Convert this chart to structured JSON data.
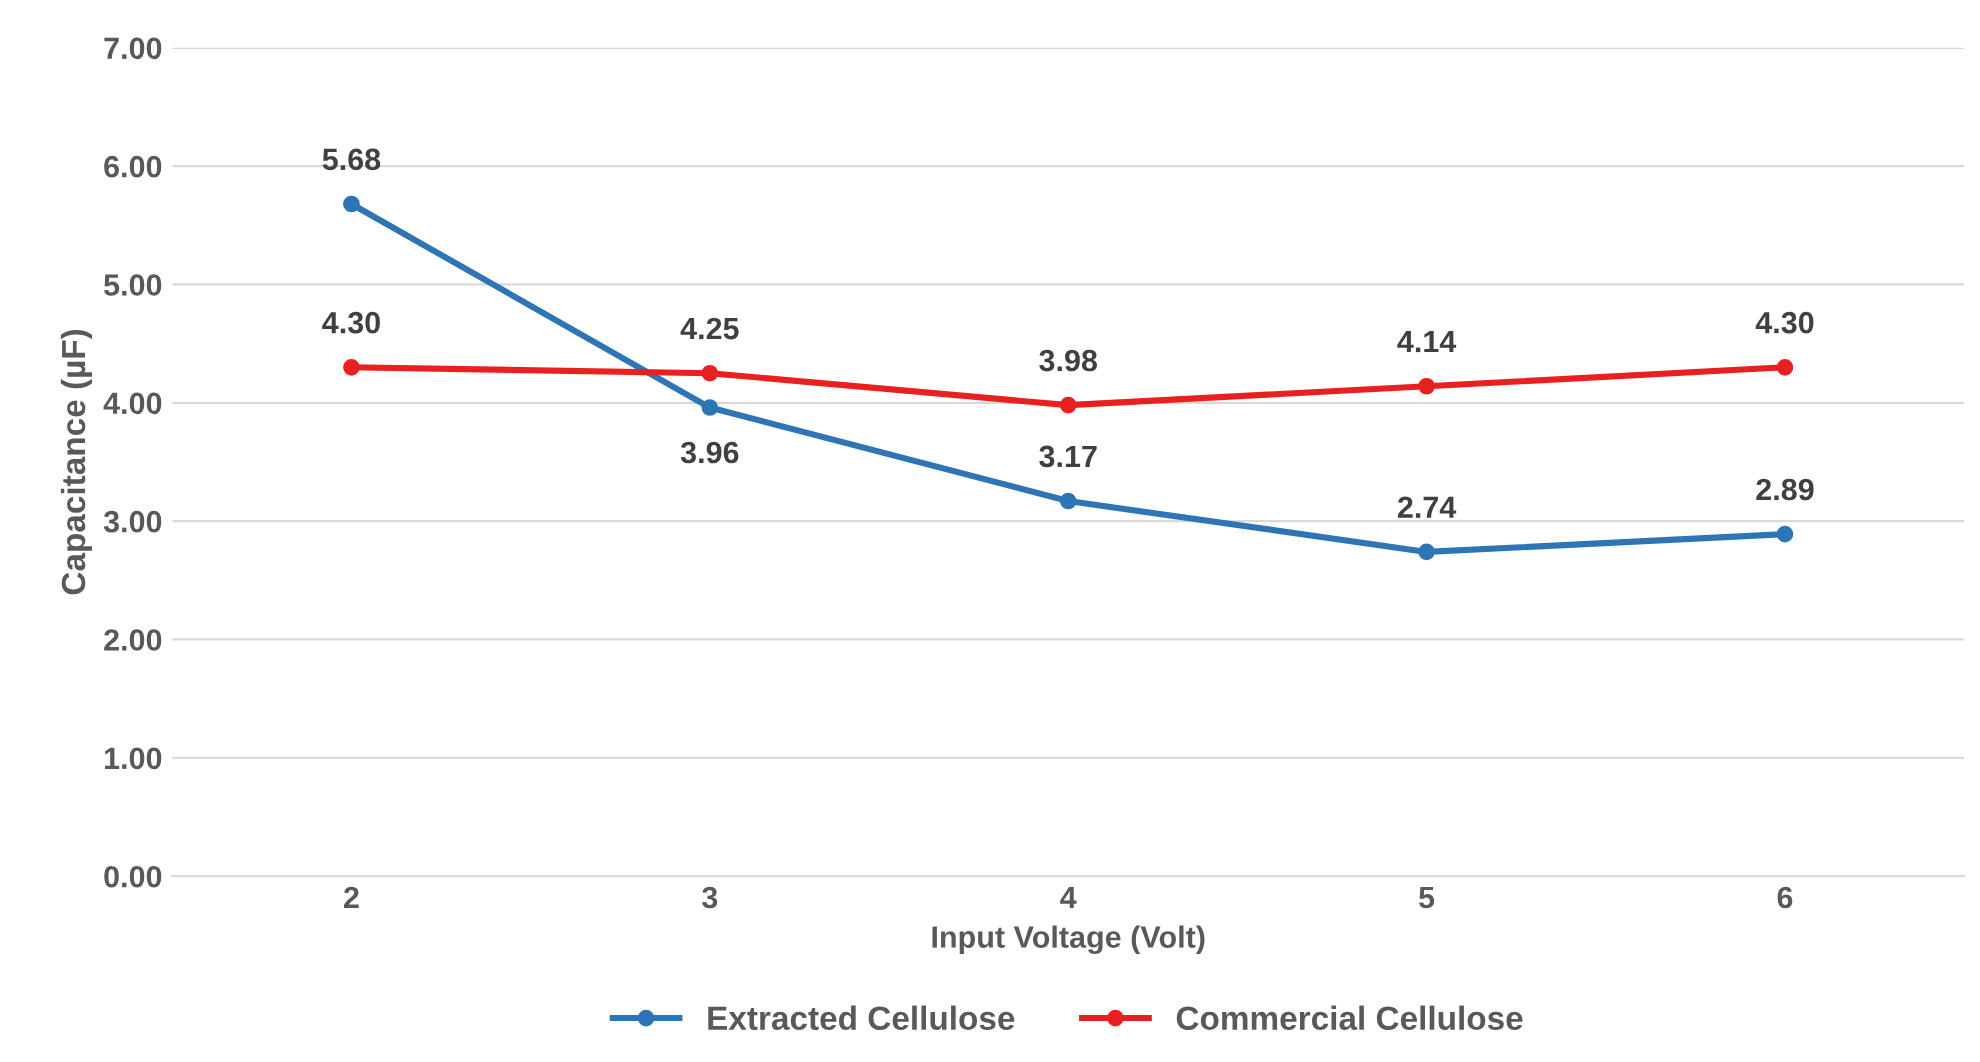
{
  "chart_data": {
    "type": "line",
    "xlabel": "Input Voltage (Volt)",
    "ylabel": "Capacitance (µF)",
    "categories": [
      "2",
      "3",
      "4",
      "5",
      "6"
    ],
    "series": [
      {
        "name": "Extracted Cellulose",
        "color": "#2e75b6",
        "values": [
          5.68,
          3.96,
          3.17,
          2.74,
          2.89
        ],
        "value_labels": [
          "5.68",
          "3.96",
          "3.17",
          "2.74",
          "2.89"
        ]
      },
      {
        "name": "Commercial Cellulose",
        "color": "#e8201f",
        "values": [
          4.3,
          4.25,
          3.98,
          4.14,
          4.3
        ],
        "value_labels": [
          "4.30",
          "4.25",
          "3.98",
          "4.14",
          "4.30"
        ]
      }
    ],
    "ylim": [
      0,
      7
    ],
    "yticks": [
      {
        "value": 0,
        "label": "0.00"
      },
      {
        "value": 1,
        "label": "1.00"
      },
      {
        "value": 2,
        "label": "2.00"
      },
      {
        "value": 3,
        "label": "3.00"
      },
      {
        "value": 4,
        "label": "4.00"
      },
      {
        "value": 5,
        "label": "5.00"
      },
      {
        "value": 6,
        "label": "6.00"
      },
      {
        "value": 7,
        "label": "7.00"
      }
    ],
    "grid": "y",
    "legend": "bottom",
    "marker": "circle",
    "line_style": "solid"
  }
}
